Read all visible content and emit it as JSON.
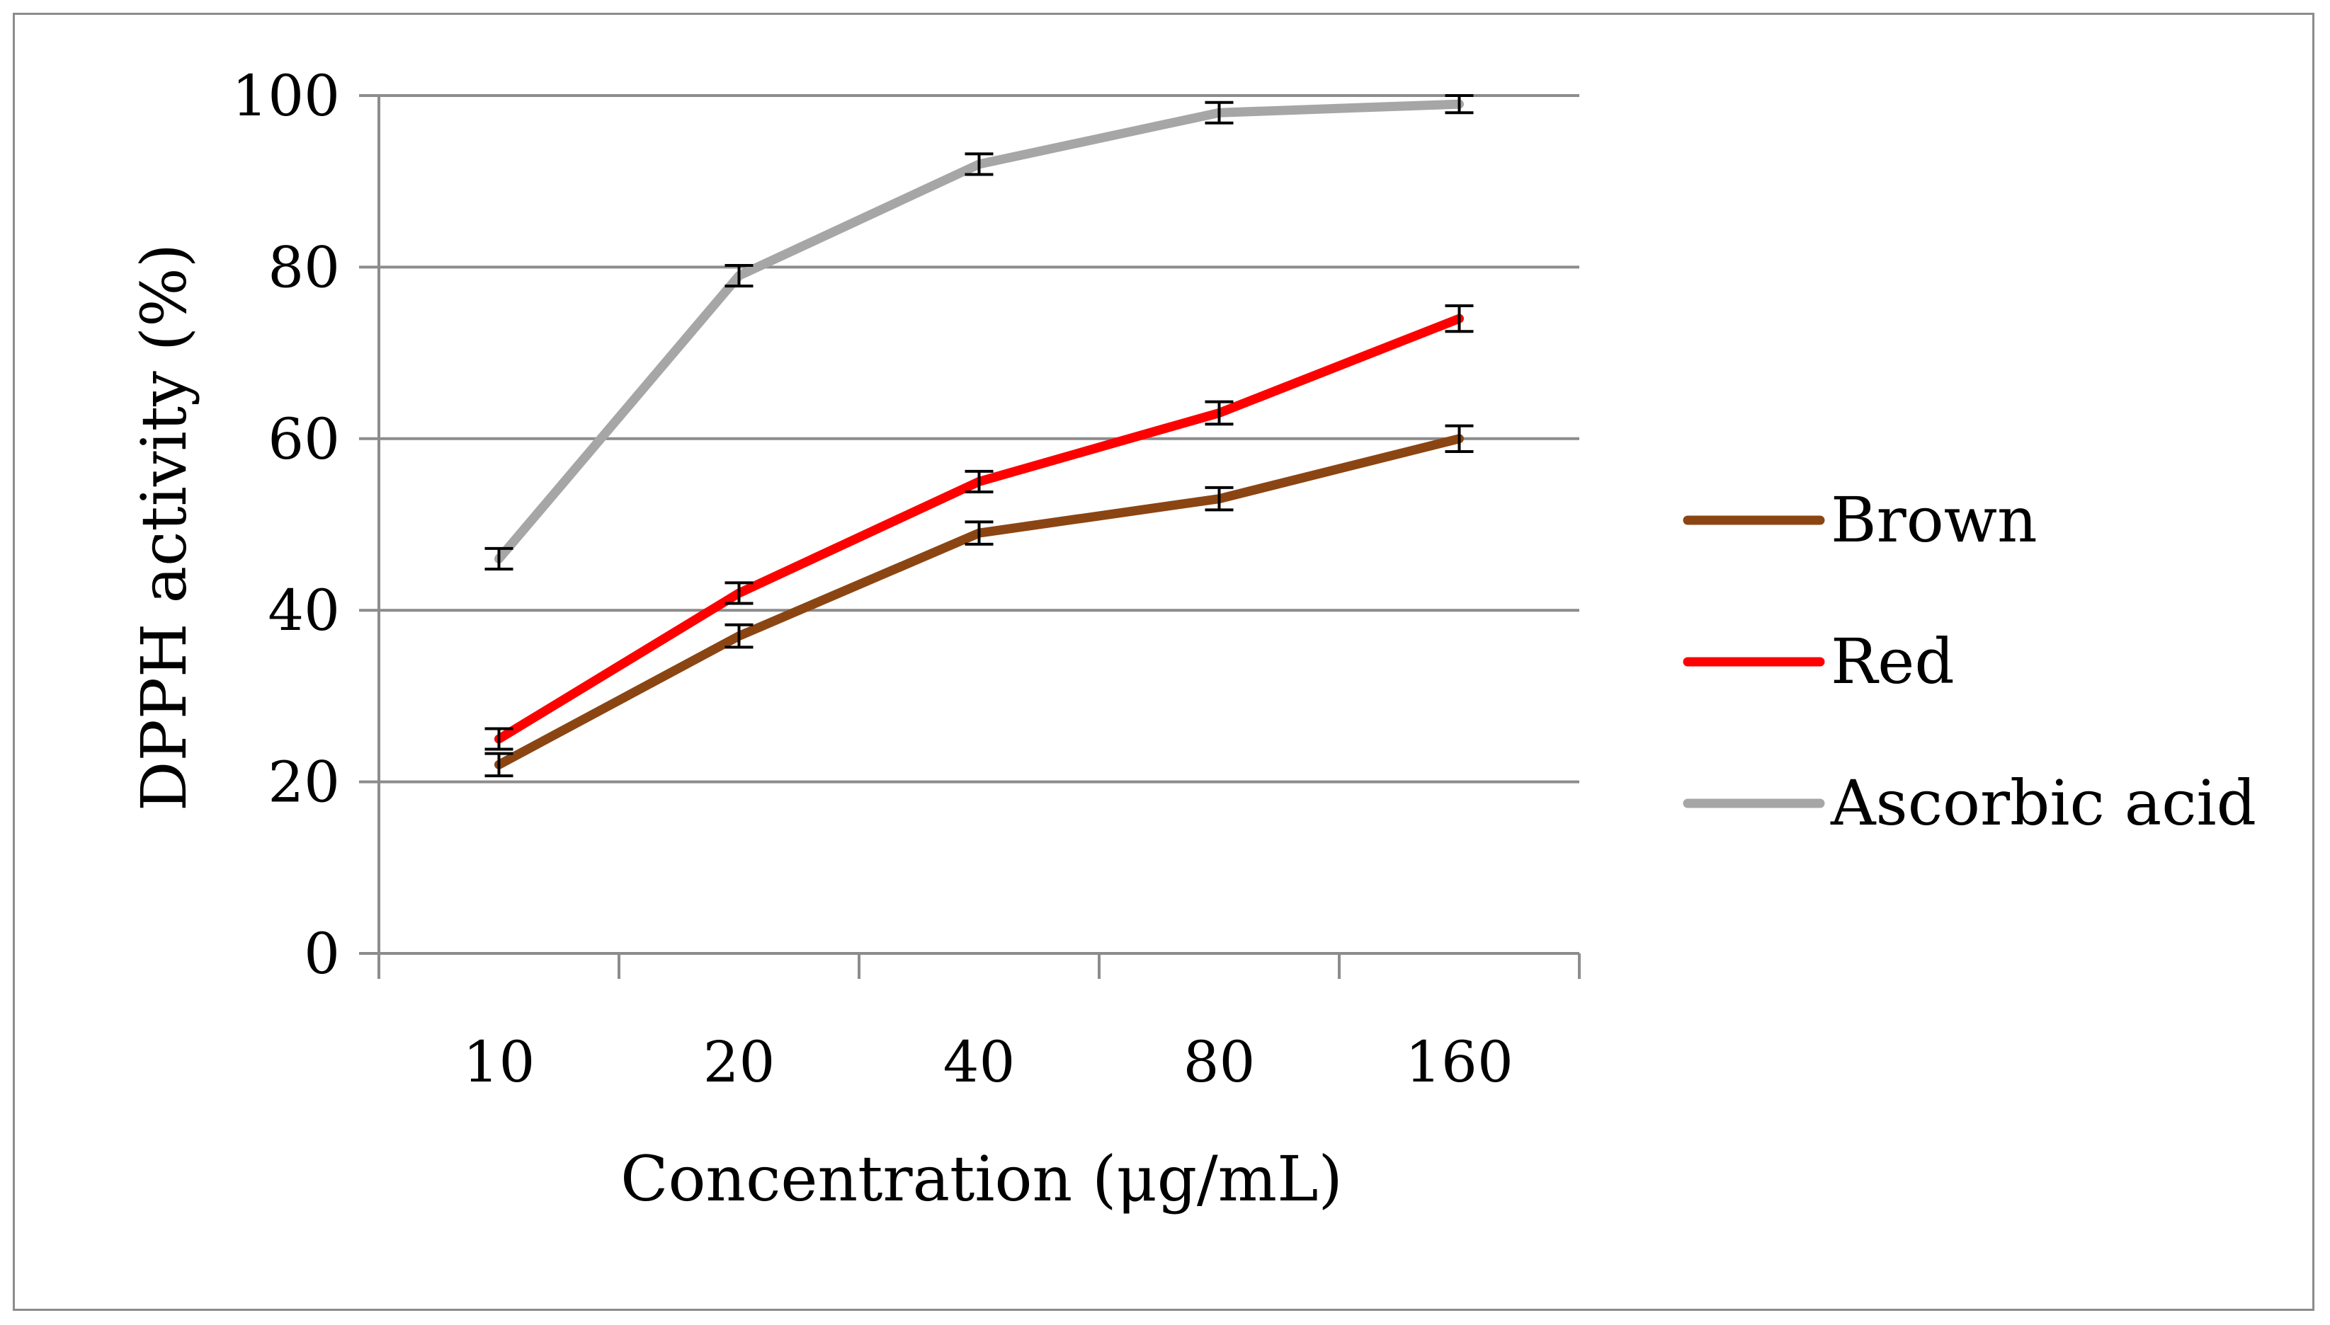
{
  "chart_data": {
    "type": "line",
    "title": "",
    "xlabel": "Concentration (μg/mL)",
    "ylabel": "DPPH activity (%)",
    "categories": [
      "10",
      "20",
      "40",
      "80",
      "160"
    ],
    "ylim": [
      0,
      100
    ],
    "yticks": [
      0,
      20,
      40,
      60,
      80,
      100
    ],
    "grid": "horizontal",
    "legend_position": "right",
    "series": [
      {
        "name": "Brown",
        "color": "#8B4513",
        "values": [
          22,
          37,
          49,
          53,
          60
        ],
        "errors": [
          1.3,
          1.3,
          1.3,
          1.3,
          1.5
        ]
      },
      {
        "name": "Red",
        "color": "#FF0000",
        "values": [
          25,
          42,
          55,
          63,
          74
        ],
        "errors": [
          1.2,
          1.2,
          1.2,
          1.3,
          1.5
        ]
      },
      {
        "name": "Ascorbic acid",
        "color": "#A6A6A6",
        "values": [
          46,
          79,
          92,
          98,
          99
        ],
        "errors": [
          1.2,
          1.2,
          1.2,
          1.2,
          1.0
        ]
      }
    ]
  }
}
